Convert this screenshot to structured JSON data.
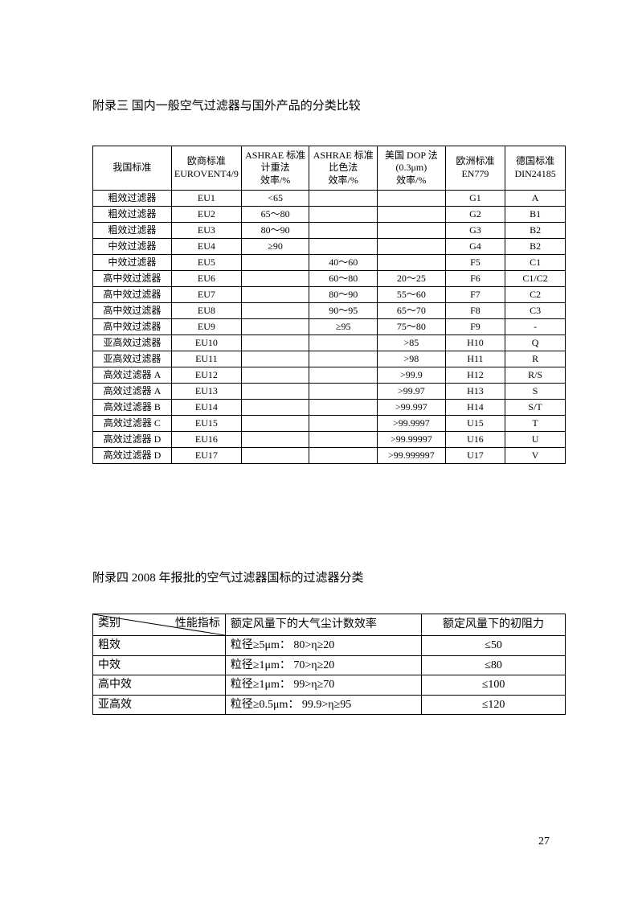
{
  "section1": {
    "title": "附录三 国内一般空气过滤器与国外产品的分类比较",
    "headers": [
      "我国标准",
      "欧商标准\nEUROVENT4/9",
      "ASHRAE 标准\n计重法\n效率/%",
      "ASHRAE 标准\n比色法\n效率/%",
      "美国 DOP 法\n(0.3μm)\n效率/%",
      "欧洲标准\nEN779",
      "德国标准\nDIN24185"
    ],
    "rows": [
      [
        "粗效过滤器",
        "EU1",
        "<65",
        "",
        "",
        "G1",
        "A"
      ],
      [
        "粗效过滤器",
        "EU2",
        "65～80",
        "",
        "",
        "G2",
        "B1"
      ],
      [
        "粗效过滤器",
        "EU3",
        "80～90",
        "",
        "",
        "G3",
        "B2"
      ],
      [
        "中效过滤器",
        "EU4",
        "≥90",
        "",
        "",
        "G4",
        "B2"
      ],
      [
        "中效过滤器",
        "EU5",
        "",
        "40～60",
        "",
        "F5",
        "C1"
      ],
      [
        "高中效过滤器",
        "EU6",
        "",
        "60～80",
        "20～25",
        "F6",
        "C1/C2"
      ],
      [
        "高中效过滤器",
        "EU7",
        "",
        "80～90",
        "55～60",
        "F7",
        "C2"
      ],
      [
        "高中效过滤器",
        "EU8",
        "",
        "90～95",
        "65～70",
        "F8",
        "C3"
      ],
      [
        "高中效过滤器",
        "EU9",
        "",
        "≥95",
        "75～80",
        "F9",
        "-"
      ],
      [
        "亚高效过滤器",
        "EU10",
        "",
        "",
        ">85",
        "H10",
        "Q"
      ],
      [
        "亚高效过滤器",
        "EU11",
        "",
        "",
        ">98",
        "H11",
        "R"
      ],
      [
        "高效过滤器 A",
        "EU12",
        "",
        "",
        ">99.9",
        "H12",
        "R/S"
      ],
      [
        "高效过滤器 A",
        "EU13",
        "",
        "",
        ">99.97",
        "H13",
        "S"
      ],
      [
        "高效过滤器 B",
        "EU14",
        "",
        "",
        ">99.997",
        "H14",
        "S/T"
      ],
      [
        "高效过滤器 C",
        "EU15",
        "",
        "",
        ">99.9997",
        "U15",
        "T"
      ],
      [
        "高效过滤器 D",
        "EU16",
        "",
        "",
        ">99.99997",
        "U16",
        "U"
      ],
      [
        "高效过滤器 D",
        "EU17",
        "",
        "",
        ">99.999997",
        "U17",
        "V"
      ]
    ]
  },
  "section2": {
    "title": "附录四 2008 年报批的空气过滤器国标的过滤器分类",
    "header_diag_left": "类别",
    "header_diag_right": "性能指标",
    "header2": "额定风量下的大气尘计数效率",
    "header3": "额定风量下的初阻力",
    "rows": [
      [
        "粗效",
        "粒径≥5μm：  80>η≥20",
        "≤50"
      ],
      [
        "中效",
        "粒径≥1μm：  70>η≥20",
        "≤80"
      ],
      [
        "高中效",
        "粒径≥1μm：  99>η≥70",
        "≤100"
      ],
      [
        "亚高效",
        "粒径≥0.5μm：  99.9>η≥95",
        "≤120"
      ]
    ]
  },
  "page_number": "27"
}
